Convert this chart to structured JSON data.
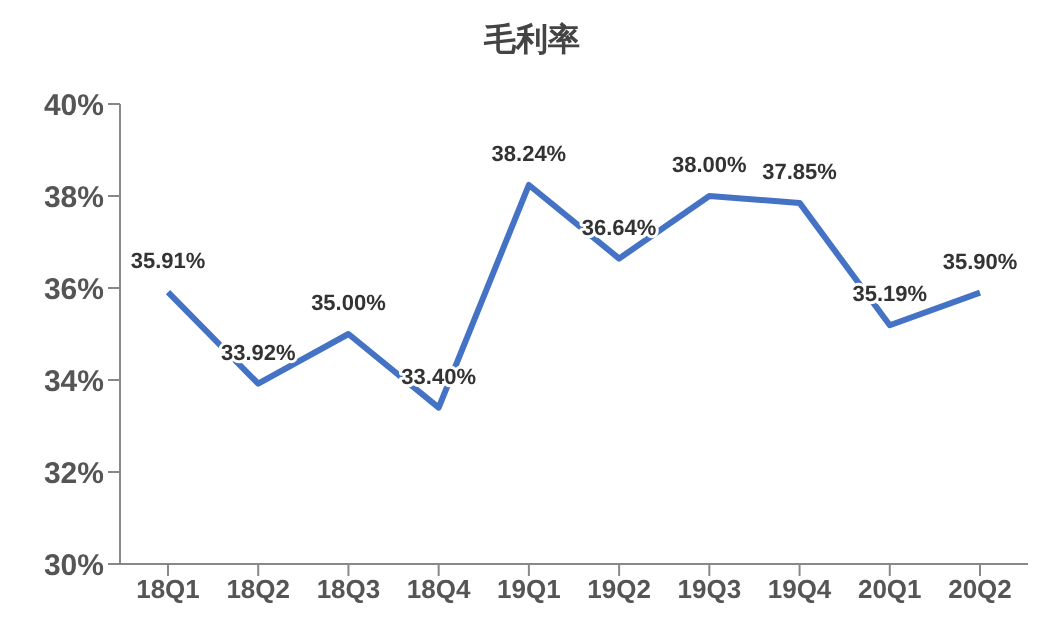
{
  "chart_data": {
    "type": "line",
    "title": "毛利率",
    "categories": [
      "18Q1",
      "18Q2",
      "18Q3",
      "18Q4",
      "19Q1",
      "19Q2",
      "19Q3",
      "19Q4",
      "20Q1",
      "20Q2"
    ],
    "series": [
      {
        "color": "#4472c4",
        "values": [
          35.91,
          33.92,
          35.0,
          33.4,
          38.24,
          36.64,
          38.0,
          37.85,
          35.19,
          35.9
        ],
        "value_labels": [
          "35.91%",
          "33.92%",
          "35.00%",
          "33.40%",
          "38.24%",
          "36.64%",
          "38.00%",
          "37.85%",
          "35.19%",
          "35.90%"
        ]
      }
    ],
    "ylim": [
      30,
      40
    ],
    "yticks": [
      {
        "value": 30,
        "label": "30%"
      },
      {
        "value": 32,
        "label": "32%"
      },
      {
        "value": 34,
        "label": "34%"
      },
      {
        "value": 36,
        "label": "36%"
      },
      {
        "value": 38,
        "label": "38%"
      },
      {
        "value": 40,
        "label": "40%"
      }
    ],
    "grid": false,
    "legend": false,
    "marker": "none",
    "line_style": "solid"
  }
}
